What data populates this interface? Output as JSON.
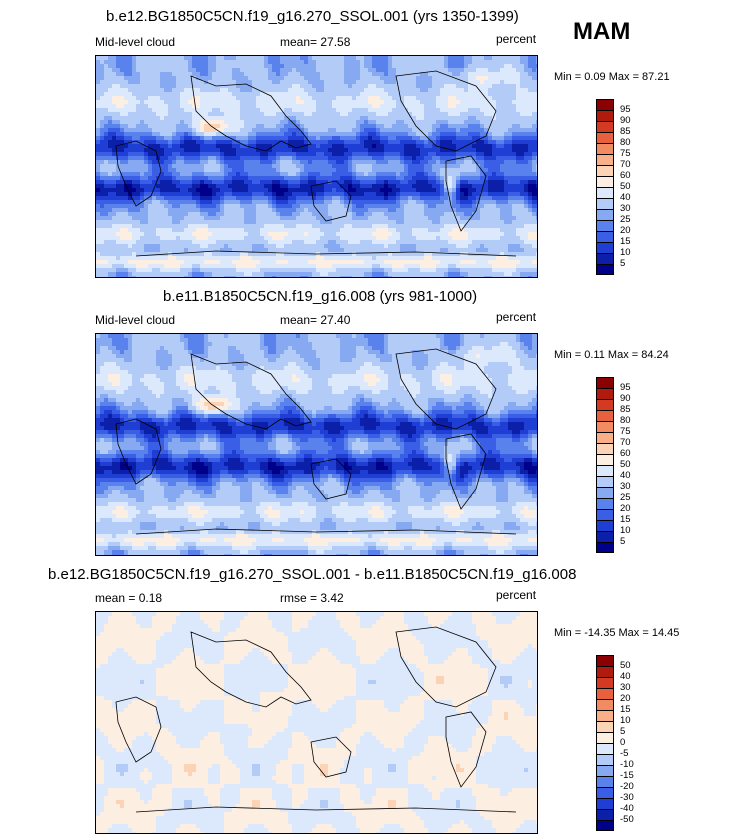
{
  "season": "MAM",
  "panels": [
    {
      "title": "b.e12.BG1850C5CN.f19_g16.270_SSOL.001 (yrs 1350-1399)",
      "left_label": "Mid-level cloud",
      "center_label": "mean=  27.58",
      "units": "percent",
      "min_max": "Min =  0.09 Max =  87.21"
    },
    {
      "title": "b.e11.B1850C5CN.f19_g16.008 (yrs 981-1000)",
      "left_label": "Mid-level cloud",
      "center_label": "mean=  27.40",
      "units": "percent",
      "min_max": "Min =  0.11 Max =  84.24"
    },
    {
      "title": "b.e12.BG1850C5CN.f19_g16.270_SSOL.001 - b.e11.B1850C5CN.f19_g16.008",
      "left_label": "mean =   0.18",
      "center_label": "rmse =   3.42",
      "units": "percent",
      "min_max": "Min = -14.35 Max =  14.45"
    }
  ],
  "chart_data": [
    {
      "type": "heatmap",
      "title": "b.e12.BG1850C5CN.f19_g16.270_SSOL.001 (yrs 1350-1399)",
      "variable": "Mid-level cloud",
      "units": "percent",
      "mean": 27.58,
      "min": 0.09,
      "max": 87.21,
      "levels": [
        5,
        10,
        15,
        20,
        25,
        30,
        40,
        50,
        60,
        70,
        75,
        80,
        85,
        90,
        95
      ],
      "colors": [
        "#00008b",
        "#0b1fa8",
        "#1f3fd4",
        "#3a5fe6",
        "#5a82ec",
        "#86a9f2",
        "#b3cbf7",
        "#dce8fc",
        "#fcefe2",
        "#fcd3b4",
        "#f9b088",
        "#f28a62",
        "#e8603e",
        "#d43a22",
        "#b01a0f",
        "#8b0000"
      ]
    },
    {
      "type": "heatmap",
      "title": "b.e11.B1850C5CN.f19_g16.008 (yrs 981-1000)",
      "variable": "Mid-level cloud",
      "units": "percent",
      "mean": 27.4,
      "min": 0.11,
      "max": 84.24,
      "levels": [
        5,
        10,
        15,
        20,
        25,
        30,
        40,
        50,
        60,
        70,
        75,
        80,
        85,
        90,
        95
      ],
      "colors": [
        "#00008b",
        "#0b1fa8",
        "#1f3fd4",
        "#3a5fe6",
        "#5a82ec",
        "#86a9f2",
        "#b3cbf7",
        "#dce8fc",
        "#fcefe2",
        "#fcd3b4",
        "#f9b088",
        "#f28a62",
        "#e8603e",
        "#d43a22",
        "#b01a0f",
        "#8b0000"
      ]
    },
    {
      "type": "heatmap",
      "title": "b.e12.BG1850C5CN.f19_g16.270_SSOL.001 - b.e11.B1850C5CN.f19_g16.008",
      "units": "percent",
      "mean": 0.18,
      "rmse": 3.42,
      "min": -14.35,
      "max": 14.45,
      "levels": [
        -50,
        -40,
        -30,
        -20,
        -15,
        -10,
        -5,
        0,
        5,
        10,
        15,
        20,
        30,
        40,
        50
      ],
      "colors": [
        "#00008b",
        "#0b1fa8",
        "#1f3fd4",
        "#3a5fe6",
        "#5a82ec",
        "#86a9f2",
        "#b3cbf7",
        "#dce8fc",
        "#fcefe2",
        "#fcd3b4",
        "#f9b088",
        "#f28a62",
        "#e8603e",
        "#d43a22",
        "#b01a0f",
        "#8b0000"
      ]
    }
  ]
}
